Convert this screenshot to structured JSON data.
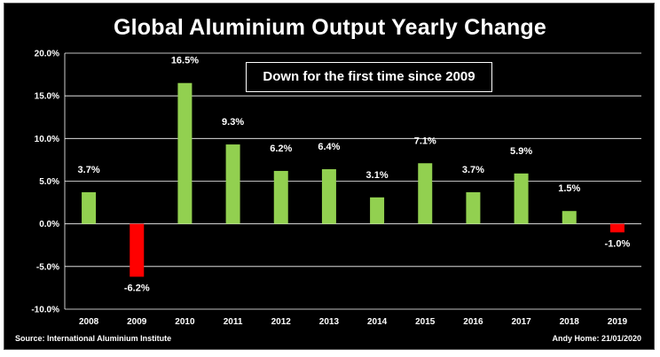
{
  "chart_data": {
    "type": "bar",
    "title": "Global Aluminium Output Yearly Change",
    "annotation": "Down for the first time since 2009",
    "categories": [
      "2008",
      "2009",
      "2010",
      "2011",
      "2012",
      "2013",
      "2014",
      "2015",
      "2016",
      "2017",
      "2018",
      "2019"
    ],
    "values": [
      3.7,
      -6.2,
      16.5,
      9.3,
      6.2,
      6.4,
      3.1,
      7.1,
      3.7,
      5.9,
      1.5,
      -1.0
    ],
    "data_labels": [
      "3.7%",
      "-6.2%",
      "16.5%",
      "9.3%",
      "6.2%",
      "6.4%",
      "3.1%",
      "7.1%",
      "3.7%",
      "5.9%",
      "1.5%",
      "-1.0%"
    ],
    "yticks": [
      20.0,
      15.0,
      10.0,
      5.0,
      0.0,
      -5.0,
      -10.0
    ],
    "ytick_labels": [
      "20.0%",
      "15.0%",
      "10.0%",
      "5.0%",
      "0.0%",
      "-5.0%",
      "-10.0%"
    ],
    "ylim": [
      -10.0,
      20.0
    ],
    "grid": true,
    "colors": {
      "positive": "#92d050",
      "negative": "#ff0000",
      "background": "#000000",
      "grid": "#ffffff",
      "text": "#ffffff"
    },
    "source": "Source: International Aluminium Institute",
    "credit": "Andy Home: 21/01/2020"
  }
}
